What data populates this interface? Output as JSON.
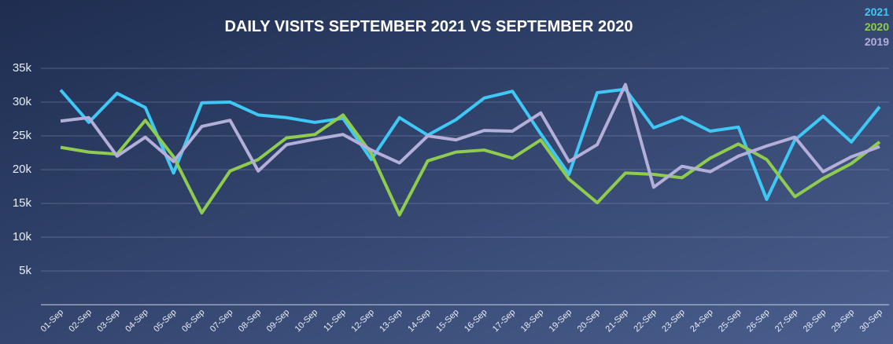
{
  "chart_data": {
    "type": "line",
    "title": "DAILY VISITS SEPTEMBER 2021 VS SEPTEMBER 2020",
    "categories": [
      "01-Sep",
      "02-Sep",
      "03-Sep",
      "04-Sep",
      "05-Sep",
      "06-Sep",
      "07-Sep",
      "08-Sep",
      "09-Sep",
      "10-Sep",
      "11-Sep",
      "12-Sep",
      "13-Sep",
      "14-Sep",
      "15-Sep",
      "16-Sep",
      "17-Sep",
      "18-Sep",
      "19-Sep",
      "20-Sep",
      "21-Sep",
      "22-Sep",
      "23-Sep",
      "24-Sep",
      "25-Sep",
      "26-Sep",
      "27-Sep",
      "28-Sep",
      "29-Sep",
      "30-Sep"
    ],
    "series": [
      {
        "name": "2021",
        "color": "#3fc8f5",
        "values": [
          31800,
          27000,
          31300,
          29200,
          19500,
          29900,
          30000,
          28100,
          27700,
          27000,
          27600,
          21500,
          27700,
          25100,
          27400,
          30600,
          31600,
          25300,
          19300,
          31400,
          31900,
          26200,
          27800,
          25700,
          26300,
          15600,
          24400,
          27900,
          24100,
          29300
        ]
      },
      {
        "name": "2020",
        "color": "#8fcc4e",
        "values": [
          23300,
          22600,
          22300,
          27300,
          21900,
          13600,
          19800,
          21500,
          24700,
          25200,
          28100,
          22400,
          13300,
          21300,
          22600,
          22900,
          21700,
          24400,
          18600,
          15100,
          19500,
          19300,
          18800,
          21700,
          23800,
          21500,
          16000,
          18700,
          20900,
          24100
        ]
      },
      {
        "name": "2019",
        "color": "#b3afd9",
        "values": [
          27200,
          27700,
          22000,
          24800,
          21200,
          26400,
          27300,
          19800,
          23700,
          24500,
          25200,
          22900,
          21000,
          25000,
          24400,
          25800,
          25700,
          28400,
          21200,
          23700,
          32600,
          17400,
          20500,
          19700,
          22000,
          23500,
          24800,
          19700,
          21900,
          23400
        ]
      }
    ],
    "ylim": [
      0,
      35000
    ],
    "yticks": [
      {
        "value": 5000,
        "label": "5k"
      },
      {
        "value": 10000,
        "label": "10k"
      },
      {
        "value": 15000,
        "label": "15k"
      },
      {
        "value": 20000,
        "label": "20k"
      },
      {
        "value": 25000,
        "label": "25k"
      },
      {
        "value": 30000,
        "label": "30k"
      },
      {
        "value": 35000,
        "label": "35k"
      }
    ],
    "grid": true,
    "legend": "top-right"
  }
}
